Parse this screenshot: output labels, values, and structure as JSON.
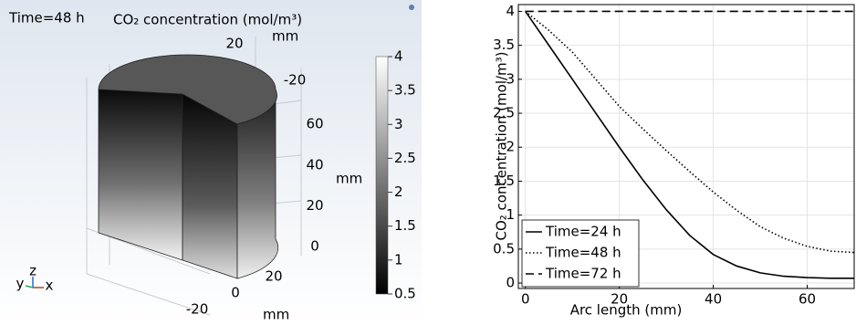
{
  "chart_data": [
    {
      "type": "volume-3d",
      "annotation": "Time=48 h",
      "title": "CO₂ concentration (mol/m³)",
      "colormap": "gray",
      "clim": [
        0.5,
        4
      ],
      "cticks": [
        0.5,
        1,
        1.5,
        2,
        2.5,
        3,
        3.5,
        4
      ],
      "xticks": [
        -20,
        0,
        20
      ],
      "yticks": [
        20,
        -20
      ],
      "zticks": [
        0,
        20,
        40,
        60
      ],
      "xlabel": "mm",
      "ylabel": "mm",
      "zlabel": "mm",
      "axes_triad": [
        "y",
        "z",
        "x"
      ]
    },
    {
      "type": "line",
      "xlabel": "Arc length (mm)",
      "ylabel": "CO₂ concentration (mol/m³)",
      "x": [
        0,
        5,
        10,
        15,
        20,
        25,
        30,
        35,
        40,
        45,
        50,
        55,
        60,
        65,
        70
      ],
      "series": [
        {
          "name": "Time=24 h",
          "color": "#000000",
          "dash": "solid",
          "values": [
            4,
            3.5,
            3.0,
            2.5,
            2.0,
            1.52,
            1.08,
            0.7,
            0.42,
            0.25,
            0.15,
            0.1,
            0.08,
            0.07,
            0.07
          ]
        },
        {
          "name": "Time=48 h",
          "color": "#000000",
          "dash": "dotted",
          "values": [
            4,
            3.72,
            3.4,
            3.0,
            2.6,
            2.27,
            1.95,
            1.64,
            1.34,
            1.07,
            0.83,
            0.66,
            0.54,
            0.47,
            0.45
          ]
        },
        {
          "name": "Time=72 h",
          "color": "#000000",
          "dash": "dashed",
          "values": [
            4,
            4,
            4,
            4,
            4,
            4,
            4,
            4,
            4,
            4,
            4,
            4,
            4,
            4,
            4
          ]
        }
      ],
      "xlim": [
        -1.5,
        70
      ],
      "ylim": [
        -0.08,
        4.1
      ],
      "xticks": [
        0,
        20,
        40,
        60
      ],
      "yticks": [
        0,
        0.5,
        1,
        1.5,
        2,
        2.5,
        3,
        3.5,
        4
      ],
      "grid": true,
      "legend": "lower-left"
    }
  ]
}
